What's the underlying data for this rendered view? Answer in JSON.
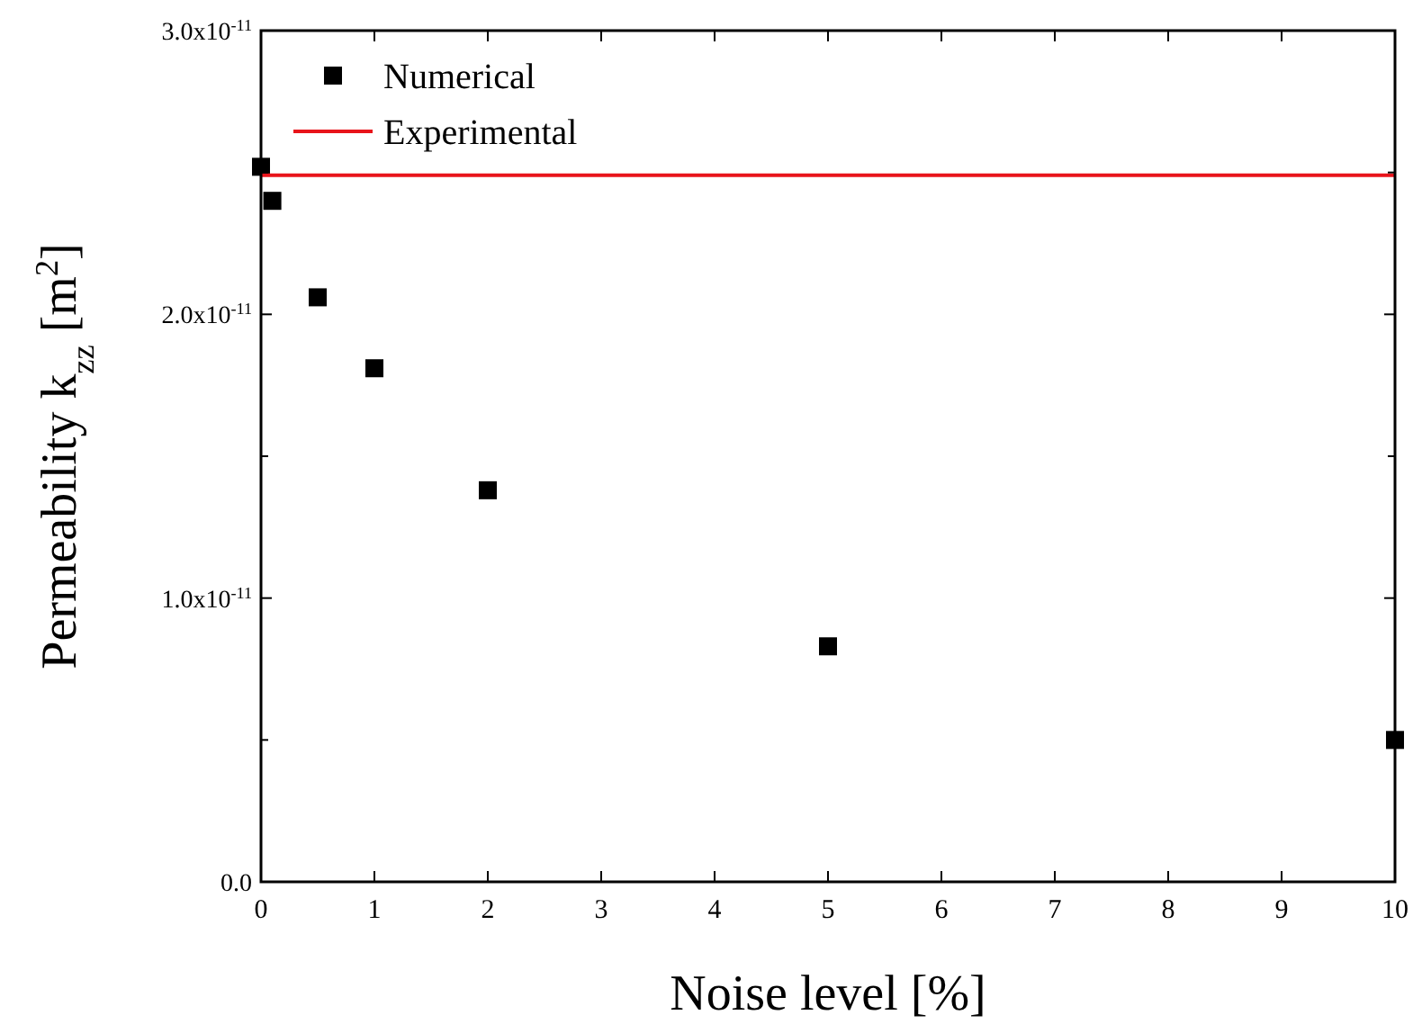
{
  "chart_data": {
    "type": "scatter",
    "xlabel": "Noise level [%]",
    "ylabel": "Permeability k$_{zz}$ [m$^{2}$]",
    "xlim": [
      0,
      10
    ],
    "xticks": [
      0,
      1,
      2,
      3,
      4,
      5,
      6,
      7,
      8,
      9,
      10
    ],
    "ylim": [
      0,
      3e-11
    ],
    "yticks": [
      {
        "value": 0,
        "label": "0.0"
      },
      {
        "value": 5e-12,
        "label": null
      },
      {
        "value": 1e-11,
        "label": "1.0x10$^{-11}$"
      },
      {
        "value": 1.5e-11,
        "label": null
      },
      {
        "value": 2e-11,
        "label": "2.0x10$^{-11}$"
      },
      {
        "value": 2.5e-11,
        "label": null
      },
      {
        "value": 3e-11,
        "label": "3.0x10$^{-11}$"
      }
    ],
    "series": [
      {
        "name": "Numerical",
        "marker": "square",
        "color": "#000000",
        "x": [
          0,
          0.1,
          0.5,
          1,
          2,
          5,
          10
        ],
        "values": [
          2.52e-11,
          2.4e-11,
          2.06e-11,
          1.81e-11,
          1.38e-11,
          8.3e-12,
          5e-12
        ]
      },
      {
        "name": "Experimental",
        "type": "line",
        "color": "#e8141b",
        "x": [
          0,
          10
        ],
        "values": [
          2.49e-11,
          2.49e-11
        ]
      }
    ],
    "legend": "top left",
    "grid": false
  }
}
